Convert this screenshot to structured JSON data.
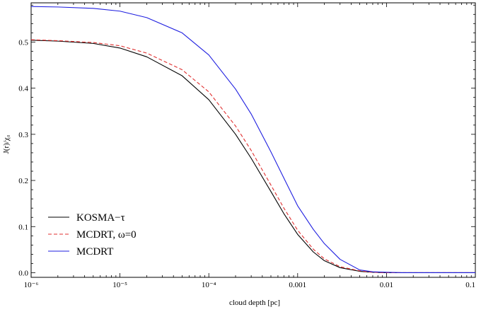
{
  "chart_data": {
    "type": "line",
    "xlabel": "cloud depth [pc]",
    "ylabel": "J(r)/χ₀",
    "xscale": "log",
    "xlim": [
      1e-06,
      0.1
    ],
    "ylim": [
      -0.01,
      0.585
    ],
    "grid": false,
    "legend_position": "bottom-left",
    "x_ticks": [
      {
        "value": 1e-06,
        "label": "10⁻⁶"
      },
      {
        "value": 1e-05,
        "label": "10⁻⁵"
      },
      {
        "value": 0.0001,
        "label": "10⁻⁴"
      },
      {
        "value": 0.001,
        "label": "0.001"
      },
      {
        "value": 0.01,
        "label": "0.01"
      },
      {
        "value": 0.1,
        "label": "0.1"
      }
    ],
    "y_ticks": [
      {
        "value": 0.0,
        "label": "0.0"
      },
      {
        "value": 0.1,
        "label": "0.1"
      },
      {
        "value": 0.2,
        "label": "0.2"
      },
      {
        "value": 0.3,
        "label": "0.3"
      },
      {
        "value": 0.4,
        "label": "0.4"
      },
      {
        "value": 0.5,
        "label": "0.5"
      }
    ],
    "x": [
      1e-06,
      2e-06,
      5e-06,
      1e-05,
      2e-05,
      5e-05,
      0.0001,
      0.0002,
      0.0003,
      0.0005,
      0.0007,
      0.001,
      0.0015,
      0.002,
      0.003,
      0.005,
      0.007,
      0.01,
      0.015,
      0.02,
      0.05,
      0.1
    ],
    "series": [
      {
        "name": "KOSMA−τ",
        "color": "#000000",
        "dash": "solid",
        "values": [
          0.504,
          0.502,
          0.497,
          0.487,
          0.468,
          0.427,
          0.375,
          0.3,
          0.248,
          0.176,
          0.128,
          0.083,
          0.045,
          0.026,
          0.011,
          0.003,
          0.001,
          0.0,
          0.0,
          0.0,
          0.0,
          0.0
        ]
      },
      {
        "name": "MCDRT, ω=0",
        "color": "#e03030",
        "dash": "dashed",
        "values": [
          0.505,
          0.503,
          0.499,
          0.492,
          0.476,
          0.44,
          0.392,
          0.318,
          0.265,
          0.19,
          0.14,
          0.092,
          0.051,
          0.03,
          0.013,
          0.004,
          0.001,
          0.0,
          0.0,
          0.0,
          0.0,
          0.0
        ]
      },
      {
        "name": "MCDRT",
        "color": "#1f1fe0",
        "dash": "solid",
        "values": [
          0.577,
          0.576,
          0.573,
          0.567,
          0.553,
          0.52,
          0.472,
          0.398,
          0.344,
          0.262,
          0.205,
          0.145,
          0.094,
          0.063,
          0.029,
          0.006,
          0.002,
          0.001,
          0.0,
          0.0,
          0.0,
          0.0
        ]
      }
    ]
  }
}
